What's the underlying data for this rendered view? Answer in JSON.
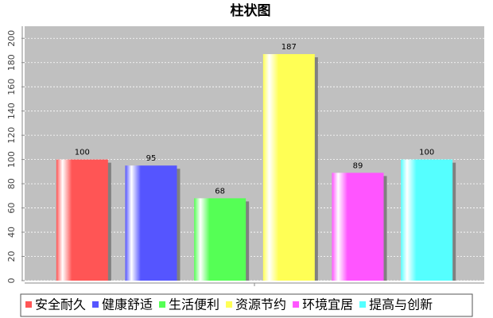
{
  "chart_data": {
    "type": "bar",
    "title": "柱状图",
    "categories": [
      null
    ],
    "series": [
      {
        "name": "安全耐久",
        "color": "#ff5555",
        "values": [
          100
        ]
      },
      {
        "name": "健康舒适",
        "color": "#5555ff",
        "values": [
          95
        ]
      },
      {
        "name": "生活便利",
        "color": "#55ff55",
        "values": [
          68
        ]
      },
      {
        "name": "资源节约",
        "color": "#ffff55",
        "values": [
          187
        ]
      },
      {
        "name": "环境宜居",
        "color": "#ff55ff",
        "values": [
          89
        ]
      },
      {
        "name": "提高与创新",
        "color": "#55ffff",
        "values": [
          100
        ]
      }
    ],
    "ylim": [
      0,
      210
    ],
    "yticks": [
      0,
      20,
      40,
      60,
      80,
      100,
      120,
      140,
      160,
      180,
      200
    ],
    "grid": true
  }
}
